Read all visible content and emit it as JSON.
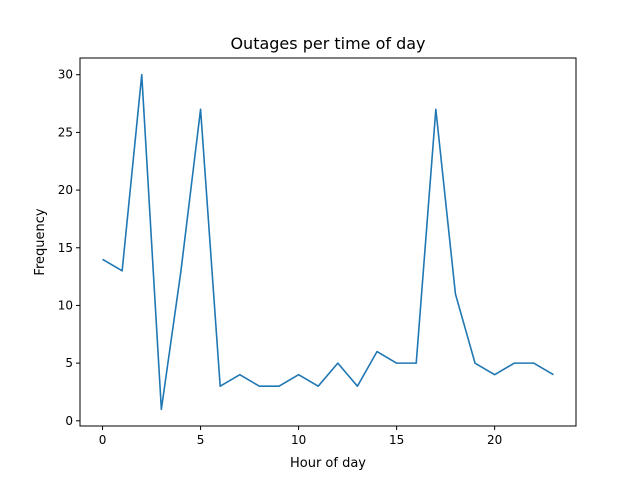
{
  "chart_data": {
    "type": "line",
    "title": "Outages per time of day",
    "xlabel": "Hour of day",
    "ylabel": "Frequency",
    "x": [
      0,
      1,
      2,
      3,
      4,
      5,
      6,
      7,
      8,
      9,
      10,
      11,
      12,
      13,
      14,
      15,
      16,
      17,
      18,
      19,
      20,
      21,
      22,
      23
    ],
    "series": [
      {
        "values": [
          14,
          13,
          30,
          1,
          13,
          27,
          3,
          4,
          3,
          3,
          4,
          3,
          5,
          3,
          6,
          5,
          5,
          27,
          11,
          5,
          4,
          5,
          5,
          4
        ],
        "color": "#1f77b4"
      }
    ],
    "xlim": [
      -1.15,
      24.15
    ],
    "ylim": [
      -0.45,
      31.45
    ],
    "xticks": [
      0,
      5,
      10,
      15,
      20
    ],
    "yticks": [
      0,
      5,
      10,
      15,
      20,
      25,
      30
    ],
    "grid": false,
    "legend": "none"
  }
}
